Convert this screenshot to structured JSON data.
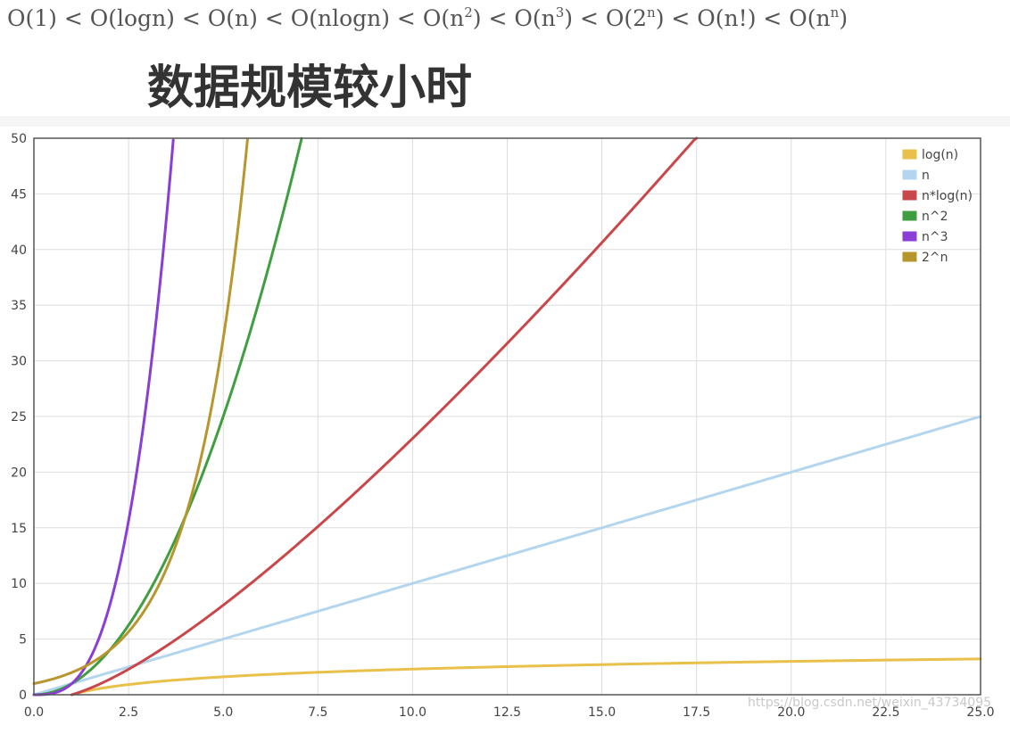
{
  "formula": {
    "terms": [
      {
        "base": "O(1)",
        "sup": ""
      },
      {
        "base": "O(logn)",
        "sup": ""
      },
      {
        "base": "O(n)",
        "sup": ""
      },
      {
        "base": "O(nlogn)",
        "sup": ""
      },
      {
        "base": "O(n",
        "sup": "2",
        "close": ")"
      },
      {
        "base": "O(n",
        "sup": "3",
        "close": ")"
      },
      {
        "base": "O(2",
        "sup": "n",
        "close": ")"
      },
      {
        "base": "O(n!)",
        "sup": ""
      },
      {
        "base": "O(n",
        "sup": "n",
        "close": ")"
      }
    ],
    "separator": "<"
  },
  "heading": "数据规模较小时",
  "watermark": "https://blog.csdn.net/weixin_43734095",
  "chart_data": {
    "type": "line",
    "title": "",
    "xlabel": "",
    "ylabel": "",
    "xlim": [
      0,
      25
    ],
    "ylim": [
      0,
      50
    ],
    "x_ticks": [
      "0.0",
      "2.5",
      "5.0",
      "7.5",
      "10.0",
      "12.5",
      "15.0",
      "17.5",
      "20.0",
      "22.5",
      "25.0"
    ],
    "y_ticks": [
      "0",
      "5",
      "10",
      "15",
      "20",
      "25",
      "30",
      "35",
      "40",
      "45",
      "50"
    ],
    "grid": true,
    "legend_position": "top-right",
    "series": [
      {
        "name": "log(n)",
        "color": "#e8c04a",
        "x": [
          1,
          2.5,
          5,
          7.5,
          10,
          12.5,
          15,
          17.5,
          20,
          22.5,
          25
        ],
        "y": [
          0,
          0.92,
          1.61,
          2.01,
          2.3,
          2.53,
          2.71,
          2.86,
          3.0,
          3.11,
          3.22
        ]
      },
      {
        "name": "n",
        "color": "#b3d6ee",
        "x": [
          0,
          5,
          10,
          15,
          20,
          25
        ],
        "y": [
          0,
          5,
          10,
          15,
          20,
          25
        ]
      },
      {
        "name": "n*log(n)",
        "color": "#c9474a",
        "x": [
          1,
          2.5,
          5,
          7.5,
          10,
          12.5,
          15,
          17.5
        ],
        "y": [
          0,
          2.29,
          8.05,
          15.11,
          23.03,
          31.57,
          40.62,
          50.09
        ]
      },
      {
        "name": "n^2",
        "color": "#3f9e3f",
        "x": [
          0,
          1,
          2,
          3,
          4,
          5,
          6,
          7.07
        ],
        "y": [
          0,
          1,
          4,
          9,
          16,
          25,
          36,
          50
        ]
      },
      {
        "name": "n^3",
        "color": "#8a3ed6",
        "x": [
          0,
          1,
          1.5,
          2,
          2.5,
          3,
          3.5,
          3.68
        ],
        "y": [
          0,
          1,
          3.38,
          8,
          15.63,
          27,
          42.88,
          50
        ]
      },
      {
        "name": "2^n",
        "color": "#b8962e",
        "x": [
          0,
          1,
          2,
          3,
          4,
          5,
          5.64
        ],
        "y": [
          1,
          2,
          4,
          8,
          16,
          32,
          50
        ]
      }
    ]
  }
}
